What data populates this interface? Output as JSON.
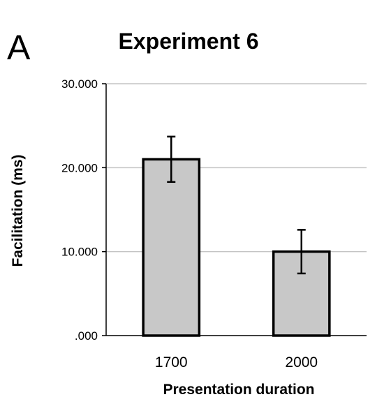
{
  "panel_label": "A",
  "chart_data": {
    "type": "bar",
    "title": "Experiment 6",
    "xlabel": "Presentation duration",
    "ylabel": "Facilitation (ms)",
    "categories": [
      "1700",
      "2000"
    ],
    "values": [
      21,
      10
    ],
    "errors": [
      2.7,
      2.6
    ],
    "ylim": [
      0,
      30
    ],
    "yticks": [
      0,
      10,
      20,
      30
    ],
    "ytick_labels": [
      ".000",
      "10.000",
      "20.000",
      "30.000"
    ],
    "grid": true,
    "bar_fill": "#c8c8c8",
    "bar_stroke": "#000000",
    "grid_color": "#c4c4c4"
  }
}
